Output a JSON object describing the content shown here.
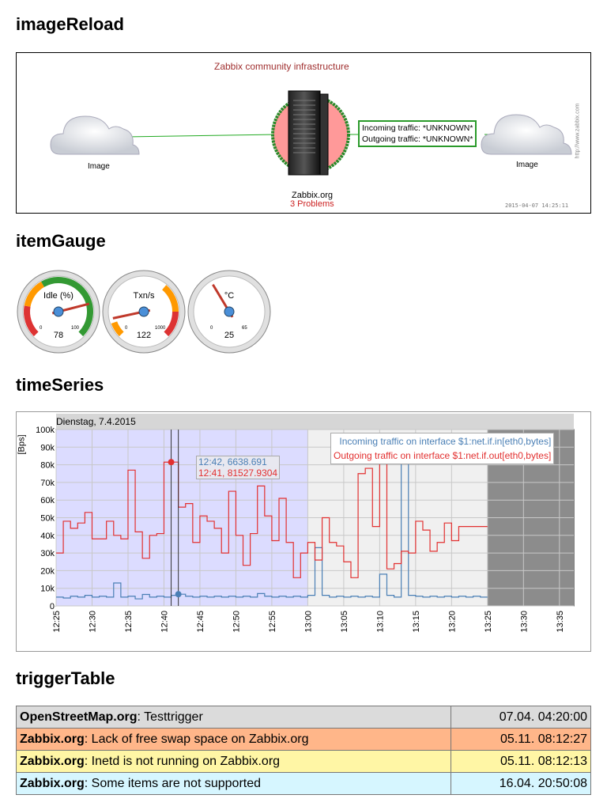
{
  "sections": {
    "image_reload": "imageReload",
    "item_gauge": "itemGauge",
    "time_series": "timeSeries",
    "trigger_table": "triggerTable"
  },
  "map": {
    "title": "Zabbix community infrastructure",
    "left_cloud_label": "Image",
    "right_cloud_label": "Image",
    "server_name": "Zabbix.org",
    "server_problems": "3 Problems",
    "incoming_traffic": "Incoming traffic: *UNKNOWN*",
    "outgoing_traffic": "Outgoing traffic: *UNKNOWN*",
    "timestamp": "2015-04-07 14:25:11",
    "watermark": "http://www.zabbix.com",
    "colors": {
      "title": "#a03030",
      "problems": "#cc2222",
      "status_ring": "#2a8a2a",
      "server_bg": "#ff9999",
      "link": "#22aa22"
    }
  },
  "gauges": [
    {
      "label": "Idle (%)",
      "value": "78",
      "min": "0",
      "max": "100",
      "fraction": 0.78,
      "icon": "gauge-idle"
    },
    {
      "label": "Txn/s",
      "value": "122",
      "min": "0",
      "max": "1000",
      "fraction": 0.122,
      "icon": "gauge-txn"
    },
    {
      "label": "°C",
      "value": "25",
      "min": "0",
      "max": "65",
      "fraction": 0.385,
      "icon": "gauge-temp"
    }
  ],
  "time_series": {
    "date_label": "Dienstag, 7.4.2015",
    "unit": "[Bps]",
    "legend_in": "Incoming traffic on interface $1:net.if.in[eth0,bytes]",
    "legend_out": "Outgoing traffic on interface $1:net.if.out[eth0,bytes]",
    "tooltip_in": "12:42, 6638.691",
    "tooltip_out": "12:41, 81527.9304",
    "colors": {
      "in": "#4a7fb5",
      "out": "#e23030",
      "selection": "#dcdcff"
    }
  },
  "chart_data": {
    "type": "line",
    "title": "Dienstag, 7.4.2015",
    "ylabel": "[Bps]",
    "xlabel": "",
    "ylim": [
      0,
      100000
    ],
    "xlim": [
      "12:25",
      "13:37"
    ],
    "y_ticks": [
      "0",
      "10k",
      "20k",
      "30k",
      "40k",
      "50k",
      "60k",
      "70k",
      "80k",
      "90k",
      "100k"
    ],
    "x_ticks": [
      "12:25",
      "12:30",
      "12:35",
      "12:40",
      "12:45",
      "12:50",
      "12:55",
      "13:00",
      "13:05",
      "13:10",
      "13:15",
      "13:20",
      "13:25",
      "13:30",
      "13:35"
    ],
    "selection_range": [
      "12:25",
      "13:00"
    ],
    "gap_range": [
      "13:25",
      "13:37"
    ],
    "grid": true,
    "legend_placement": "top-right",
    "series": [
      {
        "name": "Incoming traffic on interface $1:net.if.in[eth0,bytes]",
        "points": [
          [
            "12:25",
            5000
          ],
          [
            "12:26",
            4500
          ],
          [
            "12:27",
            5500
          ],
          [
            "12:28",
            5000
          ],
          [
            "12:29",
            6000
          ],
          [
            "12:30",
            5000
          ],
          [
            "12:31",
            5500
          ],
          [
            "12:32",
            5000
          ],
          [
            "12:33",
            13000
          ],
          [
            "12:34",
            5000
          ],
          [
            "12:35",
            5500
          ],
          [
            "12:36",
            4000
          ],
          [
            "12:37",
            6500
          ],
          [
            "12:38",
            5000
          ],
          [
            "12:39",
            5500
          ],
          [
            "12:40",
            5000
          ],
          [
            "12:41",
            6000
          ],
          [
            "12:42",
            6639
          ],
          [
            "12:43",
            5500
          ],
          [
            "12:44",
            5000
          ],
          [
            "12:45",
            5500
          ],
          [
            "12:46",
            5000
          ],
          [
            "12:47",
            5500
          ],
          [
            "12:48",
            5000
          ],
          [
            "12:49",
            5500
          ],
          [
            "12:50",
            5000
          ],
          [
            "12:51",
            5500
          ],
          [
            "12:52",
            5000
          ],
          [
            "12:53",
            7000
          ],
          [
            "12:54",
            5500
          ],
          [
            "12:55",
            5000
          ],
          [
            "12:56",
            5500
          ],
          [
            "12:57",
            5000
          ],
          [
            "12:58",
            5500
          ],
          [
            "12:59",
            5000
          ],
          [
            "13:00",
            6000
          ],
          [
            "13:01",
            33000
          ],
          [
            "13:02",
            6000
          ],
          [
            "13:03",
            5000
          ],
          [
            "13:04",
            5500
          ],
          [
            "13:05",
            5000
          ],
          [
            "13:06",
            5500
          ],
          [
            "13:07",
            5000
          ],
          [
            "13:08",
            5500
          ],
          [
            "13:09",
            5000
          ],
          [
            "13:10",
            18000
          ],
          [
            "13:11",
            6000
          ],
          [
            "13:12",
            5000
          ],
          [
            "13:13",
            85000
          ],
          [
            "13:14",
            6000
          ],
          [
            "13:15",
            5500
          ],
          [
            "13:16",
            5000
          ],
          [
            "13:17",
            5500
          ],
          [
            "13:18",
            5000
          ],
          [
            "13:19",
            5500
          ],
          [
            "13:20",
            5000
          ],
          [
            "13:21",
            5500
          ],
          [
            "13:22",
            5000
          ],
          [
            "13:23",
            5500
          ],
          [
            "13:24",
            5000
          ]
        ]
      },
      {
        "name": "Outgoing traffic on interface $1:net.if.out[eth0,bytes]",
        "points": [
          [
            "12:25",
            30000
          ],
          [
            "12:26",
            48000
          ],
          [
            "12:27",
            44000
          ],
          [
            "12:28",
            47000
          ],
          [
            "12:29",
            53000
          ],
          [
            "12:30",
            38000
          ],
          [
            "12:31",
            38000
          ],
          [
            "12:32",
            48000
          ],
          [
            "12:33",
            40000
          ],
          [
            "12:34",
            38000
          ],
          [
            "12:35",
            77000
          ],
          [
            "12:36",
            42000
          ],
          [
            "12:37",
            27000
          ],
          [
            "12:38",
            40000
          ],
          [
            "12:39",
            41000
          ],
          [
            "12:40",
            81500
          ],
          [
            "12:41",
            81528
          ],
          [
            "12:42",
            56000
          ],
          [
            "12:43",
            58000
          ],
          [
            "12:44",
            36000
          ],
          [
            "12:45",
            51000
          ],
          [
            "12:46",
            48000
          ],
          [
            "12:47",
            44000
          ],
          [
            "12:48",
            30000
          ],
          [
            "12:49",
            65000
          ],
          [
            "12:50",
            40000
          ],
          [
            "12:51",
            23000
          ],
          [
            "12:52",
            41000
          ],
          [
            "12:53",
            68000
          ],
          [
            "12:54",
            51000
          ],
          [
            "12:55",
            37000
          ],
          [
            "12:56",
            61000
          ],
          [
            "12:57",
            36000
          ],
          [
            "12:58",
            16000
          ],
          [
            "12:59",
            30000
          ],
          [
            "13:00",
            36000
          ],
          [
            "13:01",
            26000
          ],
          [
            "13:02",
            50000
          ],
          [
            "13:03",
            36000
          ],
          [
            "13:04",
            34000
          ],
          [
            "13:05",
            25000
          ],
          [
            "13:06",
            16000
          ],
          [
            "13:07",
            75000
          ],
          [
            "13:08",
            78000
          ],
          [
            "13:09",
            45000
          ],
          [
            "13:10",
            87000
          ],
          [
            "13:11",
            21000
          ],
          [
            "13:12",
            24000
          ],
          [
            "13:13",
            31000
          ],
          [
            "13:14",
            30000
          ],
          [
            "13:15",
            48000
          ],
          [
            "13:16",
            43000
          ],
          [
            "13:17",
            31000
          ],
          [
            "13:18",
            36000
          ],
          [
            "13:19",
            47000
          ],
          [
            "13:20",
            37000
          ],
          [
            "13:21",
            45000
          ],
          [
            "13:22",
            45000
          ],
          [
            "13:23",
            45000
          ],
          [
            "13:24",
            45000
          ]
        ]
      }
    ]
  },
  "triggers": [
    {
      "host": "OpenStreetMap.org",
      "description": ": Testtrigger",
      "time": "07.04. 04:20:00",
      "color": "#dbdbdb"
    },
    {
      "host": "Zabbix.org",
      "description": ": Lack of free swap space on Zabbix.org",
      "time": "05.11. 08:12:27",
      "color": "#ffb689"
    },
    {
      "host": "Zabbix.org",
      "description": ": Inetd is not running on Zabbix.org",
      "time": "05.11. 08:12:13",
      "color": "#fff6a5"
    },
    {
      "host": "Zabbix.org",
      "description": ": Some items are not supported",
      "time": "16.04. 20:50:08",
      "color": "#d6f6ff"
    }
  ]
}
